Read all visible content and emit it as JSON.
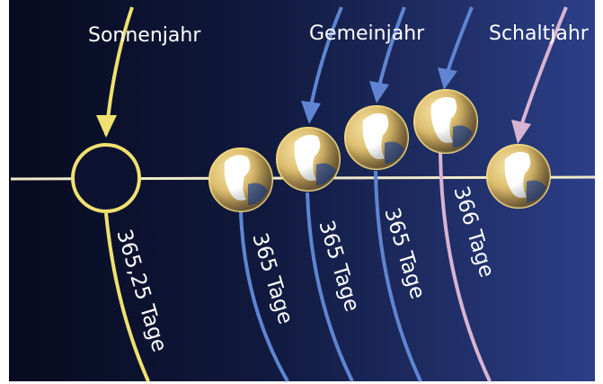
{
  "labels": {
    "sonnenjahr": "Sonnenjahr",
    "gemeinjahr": "Gemeinjahr",
    "schaltjahr": "Schaltjahr"
  },
  "durations": [
    {
      "text": "365,25 Tage",
      "days": 365.25
    },
    {
      "text": "365 Tage",
      "days": 365
    },
    {
      "text": "365 Tage",
      "days": 365
    },
    {
      "text": "365 Tage",
      "days": 365
    },
    {
      "text": "366 Tage",
      "days": 366
    }
  ],
  "colors": {
    "background_dark": "#0a1028",
    "background_light": "#2a3c82",
    "sun_year": "#f0e070",
    "common_year": "#5f85d2",
    "leap_year": "#d8b4d2",
    "orbit_line": "#efeaca",
    "earth_land": "#ffffff",
    "earth_ocean": "#3a5aa0",
    "earth_rim": "#f2d67e"
  }
}
